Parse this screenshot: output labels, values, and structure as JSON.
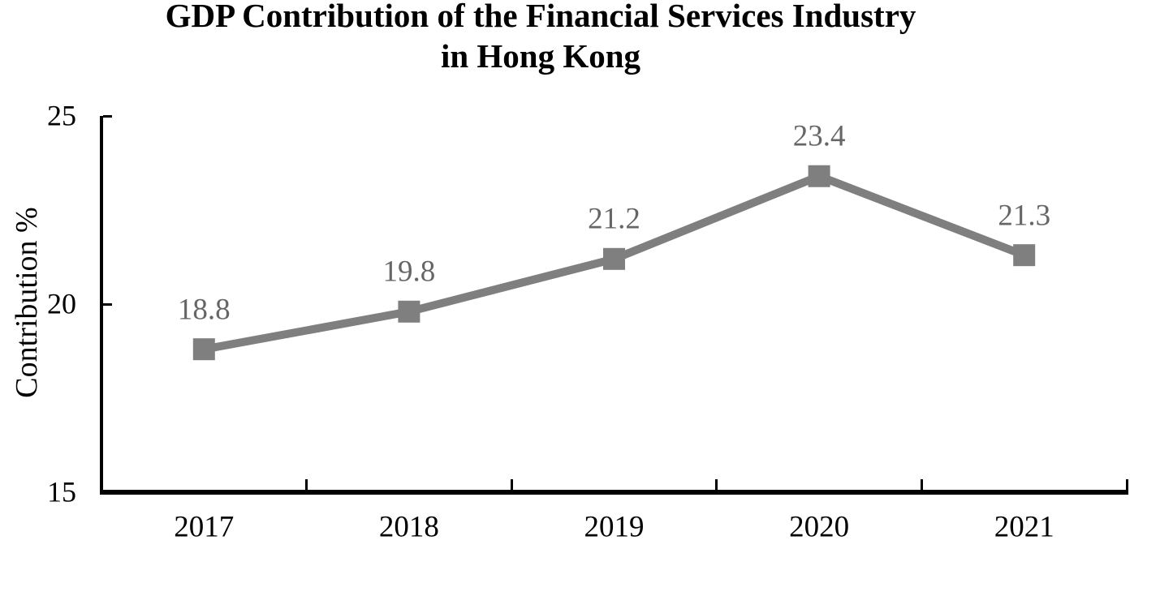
{
  "title": {
    "line1": "GDP Contribution of the Financial Services Industry",
    "line2": "in Hong Kong"
  },
  "chart_data": {
    "type": "line",
    "title": "GDP Contribution of the Financial Services Industry in Hong Kong",
    "categories": [
      "2017",
      "2018",
      "2019",
      "2020",
      "2021"
    ],
    "values": [
      18.8,
      19.8,
      21.2,
      23.4,
      21.3
    ],
    "data_labels": [
      "18.8",
      "19.8",
      "21.2",
      "23.4",
      "21.3"
    ],
    "xlabel": "",
    "ylabel": "Contribution %",
    "ylim": [
      15,
      25
    ],
    "yticks": [
      15,
      20,
      25
    ],
    "grid": false,
    "legend": false,
    "marker": "square",
    "colors": {
      "line": "#7f7f7f",
      "marker": "#7f7f7f",
      "data_label": "#666666",
      "axis": "#000000",
      "tick_label": "#000000",
      "background": "#ffffff"
    }
  }
}
